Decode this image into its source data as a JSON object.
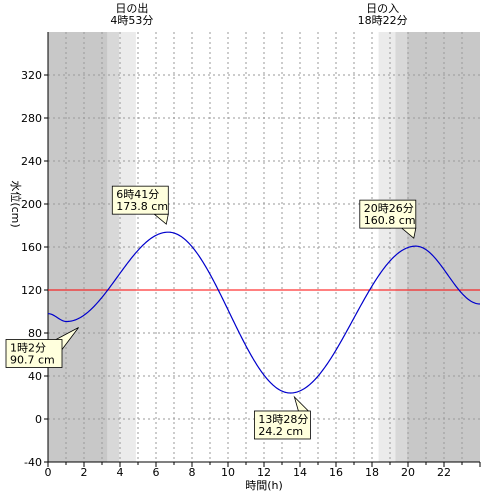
{
  "chart_data": {
    "type": "line",
    "xlabel": "時間(h)",
    "ylabel": "水位(cm)",
    "xlim": [
      0,
      24
    ],
    "ylim": [
      -40,
      360
    ],
    "x_ticks": [
      0,
      2,
      4,
      6,
      8,
      10,
      12,
      14,
      16,
      18,
      20,
      22
    ],
    "y_ticks": [
      -40,
      0,
      40,
      80,
      120,
      160,
      200,
      240,
      280,
      320
    ],
    "grid": true,
    "reference_line": {
      "value": 120,
      "color": "#ff0000"
    },
    "series": [
      {
        "color": "#0000cc",
        "x": [
          0,
          1.033,
          6.683,
          13.467,
          20.433,
          24
        ],
        "y": [
          98,
          90.7,
          173.8,
          24.2,
          160.8,
          107
        ]
      }
    ],
    "sunrise": {
      "label": "日の出",
      "time": "4時53分",
      "hour": 4.883
    },
    "sunset": {
      "label": "日の入",
      "time": "18時22分",
      "hour": 18.367
    },
    "twilight_bands": [
      {
        "from": 0,
        "to": 3.3,
        "color": "#c8c8c8"
      },
      {
        "from": 3.3,
        "to": 3.95,
        "color": "#d8d8d8"
      },
      {
        "from": 3.95,
        "to": 4.883,
        "color": "#ebebeb"
      },
      {
        "from": 18.367,
        "to": 19.3,
        "color": "#ebebeb"
      },
      {
        "from": 19.3,
        "to": 19.95,
        "color": "#d8d8d8"
      },
      {
        "from": 19.95,
        "to": 24,
        "color": "#c8c8c8"
      }
    ],
    "annotations": [
      {
        "time": "1時2分",
        "level": "90.7 cm",
        "x": 1.033,
        "y": 90.7
      },
      {
        "time": "6時41分",
        "level": "173.8 cm",
        "x": 6.683,
        "y": 173.8
      },
      {
        "time": "13時28分",
        "level": "24.2 cm",
        "x": 13.467,
        "y": 24.2
      },
      {
        "time": "20時26分",
        "level": "160.8 cm",
        "x": 20.433,
        "y": 160.8
      }
    ]
  }
}
